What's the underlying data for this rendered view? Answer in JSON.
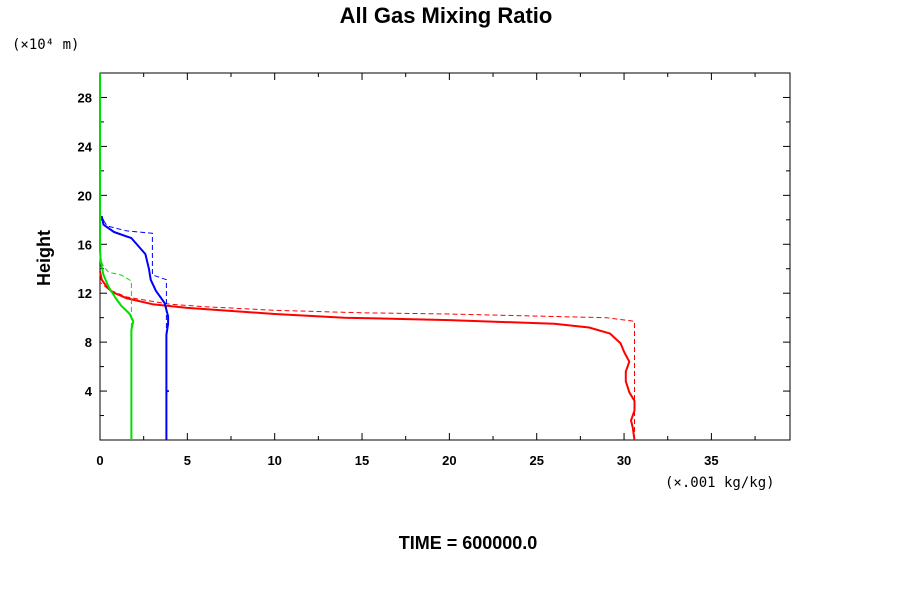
{
  "chart_data": {
    "type": "line",
    "title": "All Gas Mixing Ratio",
    "ylabel": "Height",
    "y_unit_label": "(×10⁴ m)",
    "x_unit_label": "(×.001 kg/kg)",
    "footer": "TIME = 600000.0",
    "xlim": [
      0,
      39.5
    ],
    "ylim": [
      0,
      30
    ],
    "x_ticks": [
      0,
      5,
      10,
      15,
      20,
      25,
      30,
      35
    ],
    "y_ticks": [
      4,
      8,
      12,
      16,
      20,
      24,
      28
    ],
    "grid": false,
    "series": [
      {
        "color": "#ff0000",
        "style": "solid",
        "points": [
          [
            30.6,
            0
          ],
          [
            30.5,
            1
          ],
          [
            30.4,
            1.6
          ],
          [
            30.6,
            2.4
          ],
          [
            30.6,
            3.2
          ],
          [
            30.3,
            3.9
          ],
          [
            30.1,
            4.8
          ],
          [
            30.1,
            5.6
          ],
          [
            30.3,
            6.4
          ],
          [
            30.0,
            7.2
          ],
          [
            29.8,
            7.9
          ],
          [
            29.2,
            8.7
          ],
          [
            28.0,
            9.2
          ],
          [
            26.0,
            9.5
          ],
          [
            20.0,
            9.8
          ],
          [
            14.0,
            10.0
          ],
          [
            10.0,
            10.3
          ],
          [
            5.0,
            10.8
          ],
          [
            3.0,
            11.1
          ],
          [
            1.5,
            11.6
          ],
          [
            0.7,
            12.1
          ],
          [
            0.4,
            12.5
          ],
          [
            0.1,
            13.1
          ],
          [
            0.0,
            13.8
          ]
        ]
      },
      {
        "color": "#ff0000",
        "style": "dashed",
        "points": [
          [
            30.6,
            0
          ],
          [
            30.6,
            9.7
          ],
          [
            29.0,
            10.0
          ],
          [
            20.0,
            10.3
          ],
          [
            15.0,
            10.4
          ],
          [
            10.0,
            10.6
          ],
          [
            6.0,
            10.9
          ],
          [
            4.0,
            11.1
          ],
          [
            2.7,
            11.4
          ],
          [
            1.5,
            11.7
          ],
          [
            0.5,
            12.3
          ],
          [
            0.0,
            12.9
          ]
        ]
      },
      {
        "color": "#0000ff",
        "style": "solid",
        "points": [
          [
            3.8,
            0
          ],
          [
            3.8,
            4.0
          ],
          [
            3.9,
            4.0
          ],
          [
            3.8,
            4.0
          ],
          [
            3.8,
            8.6
          ],
          [
            3.9,
            9.5
          ],
          [
            3.9,
            10.1
          ],
          [
            3.7,
            11.2
          ],
          [
            3.2,
            12.2
          ],
          [
            2.9,
            13.1
          ],
          [
            2.8,
            14.0
          ],
          [
            2.6,
            15.2
          ],
          [
            1.8,
            16.5
          ],
          [
            0.8,
            17.0
          ],
          [
            0.2,
            17.6
          ],
          [
            0.1,
            18.3
          ]
        ]
      },
      {
        "color": "#0000ff",
        "style": "dashed",
        "points": [
          [
            3.8,
            0
          ],
          [
            3.8,
            13.1
          ],
          [
            3.0,
            13.5
          ],
          [
            3.0,
            16.9
          ],
          [
            1.5,
            17.1
          ],
          [
            0.4,
            17.5
          ],
          [
            0.1,
            18.2
          ]
        ]
      },
      {
        "color": "#00dd00",
        "style": "solid",
        "points": [
          [
            1.8,
            0
          ],
          [
            1.8,
            8.2
          ],
          [
            1.8,
            9.0
          ],
          [
            1.9,
            9.7
          ],
          [
            1.7,
            10.3
          ],
          [
            1.2,
            11.0
          ],
          [
            0.9,
            11.6
          ],
          [
            0.5,
            12.5
          ],
          [
            0.2,
            13.5
          ],
          [
            0.05,
            14.5
          ],
          [
            0.0,
            15.5
          ],
          [
            0.0,
            30.0
          ]
        ]
      },
      {
        "color": "#00dd00",
        "style": "dashed",
        "points": [
          [
            1.8,
            0
          ],
          [
            1.8,
            10.5
          ],
          [
            1.8,
            13.0
          ],
          [
            1.2,
            13.5
          ],
          [
            0.5,
            13.7
          ],
          [
            0.2,
            14.2
          ],
          [
            0.0,
            14.8
          ]
        ]
      }
    ]
  }
}
